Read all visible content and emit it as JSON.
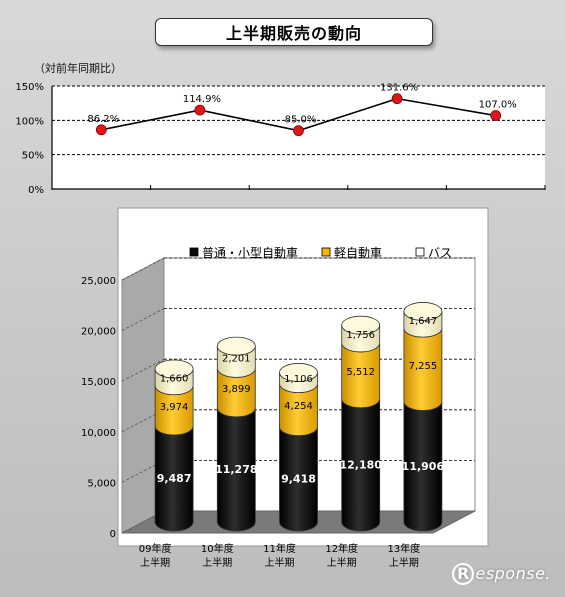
{
  "page": {
    "title": "上半期販売の動向",
    "watermark": "esponse."
  },
  "chart_data": [
    {
      "type": "line",
      "subtitle": "（対前年同期比）",
      "categories": [
        "09年度上半期",
        "10年度上半期",
        "11年度上半期",
        "12年度上半期",
        "13年度上半期"
      ],
      "values": [
        86.2,
        114.9,
        85.0,
        131.6,
        107.0
      ],
      "data_labels": [
        "86.2%",
        "114.9%",
        "85.0%",
        "131.6%",
        "107.0%"
      ],
      "y_ticks": [
        "0%",
        "50%",
        "100%",
        "150%"
      ],
      "ylim": [
        0,
        150
      ],
      "grid": true,
      "colors": {
        "line": "#000000",
        "marker": "#e0151b"
      }
    },
    {
      "type": "bar",
      "stacked": true,
      "categories": [
        "09年度\n上半期",
        "10年度\n上半期",
        "11年度\n上半期",
        "12年度\n上半期",
        "13年度\n上半期"
      ],
      "series": [
        {
          "name": "普通・小型自動車",
          "values": [
            9487,
            11278,
            9418,
            12180,
            11906
          ],
          "labels": [
            "9,487",
            "11,278",
            "9,418",
            "12,180",
            "11,906"
          ],
          "color": "#0a0a0a"
        },
        {
          "name": "軽自動車",
          "values": [
            3974,
            3899,
            4254,
            5512,
            7255
          ],
          "labels": [
            "3,974",
            "3,899",
            "4,254",
            "5,512",
            "7,255"
          ],
          "color": "#f5b500"
        },
        {
          "name": "バス",
          "values": [
            1660,
            2201,
            1106,
            1756,
            1647
          ],
          "labels": [
            "1,660",
            "2,201",
            "1,106",
            "1,756",
            "1,647"
          ],
          "color": "#f6f1c2"
        }
      ],
      "y_ticks": [
        "0",
        "5,000",
        "10,000",
        "15,000",
        "20,000",
        "25,000"
      ],
      "ylim": [
        0,
        25000
      ],
      "legend_position": "top",
      "grid": true
    }
  ]
}
